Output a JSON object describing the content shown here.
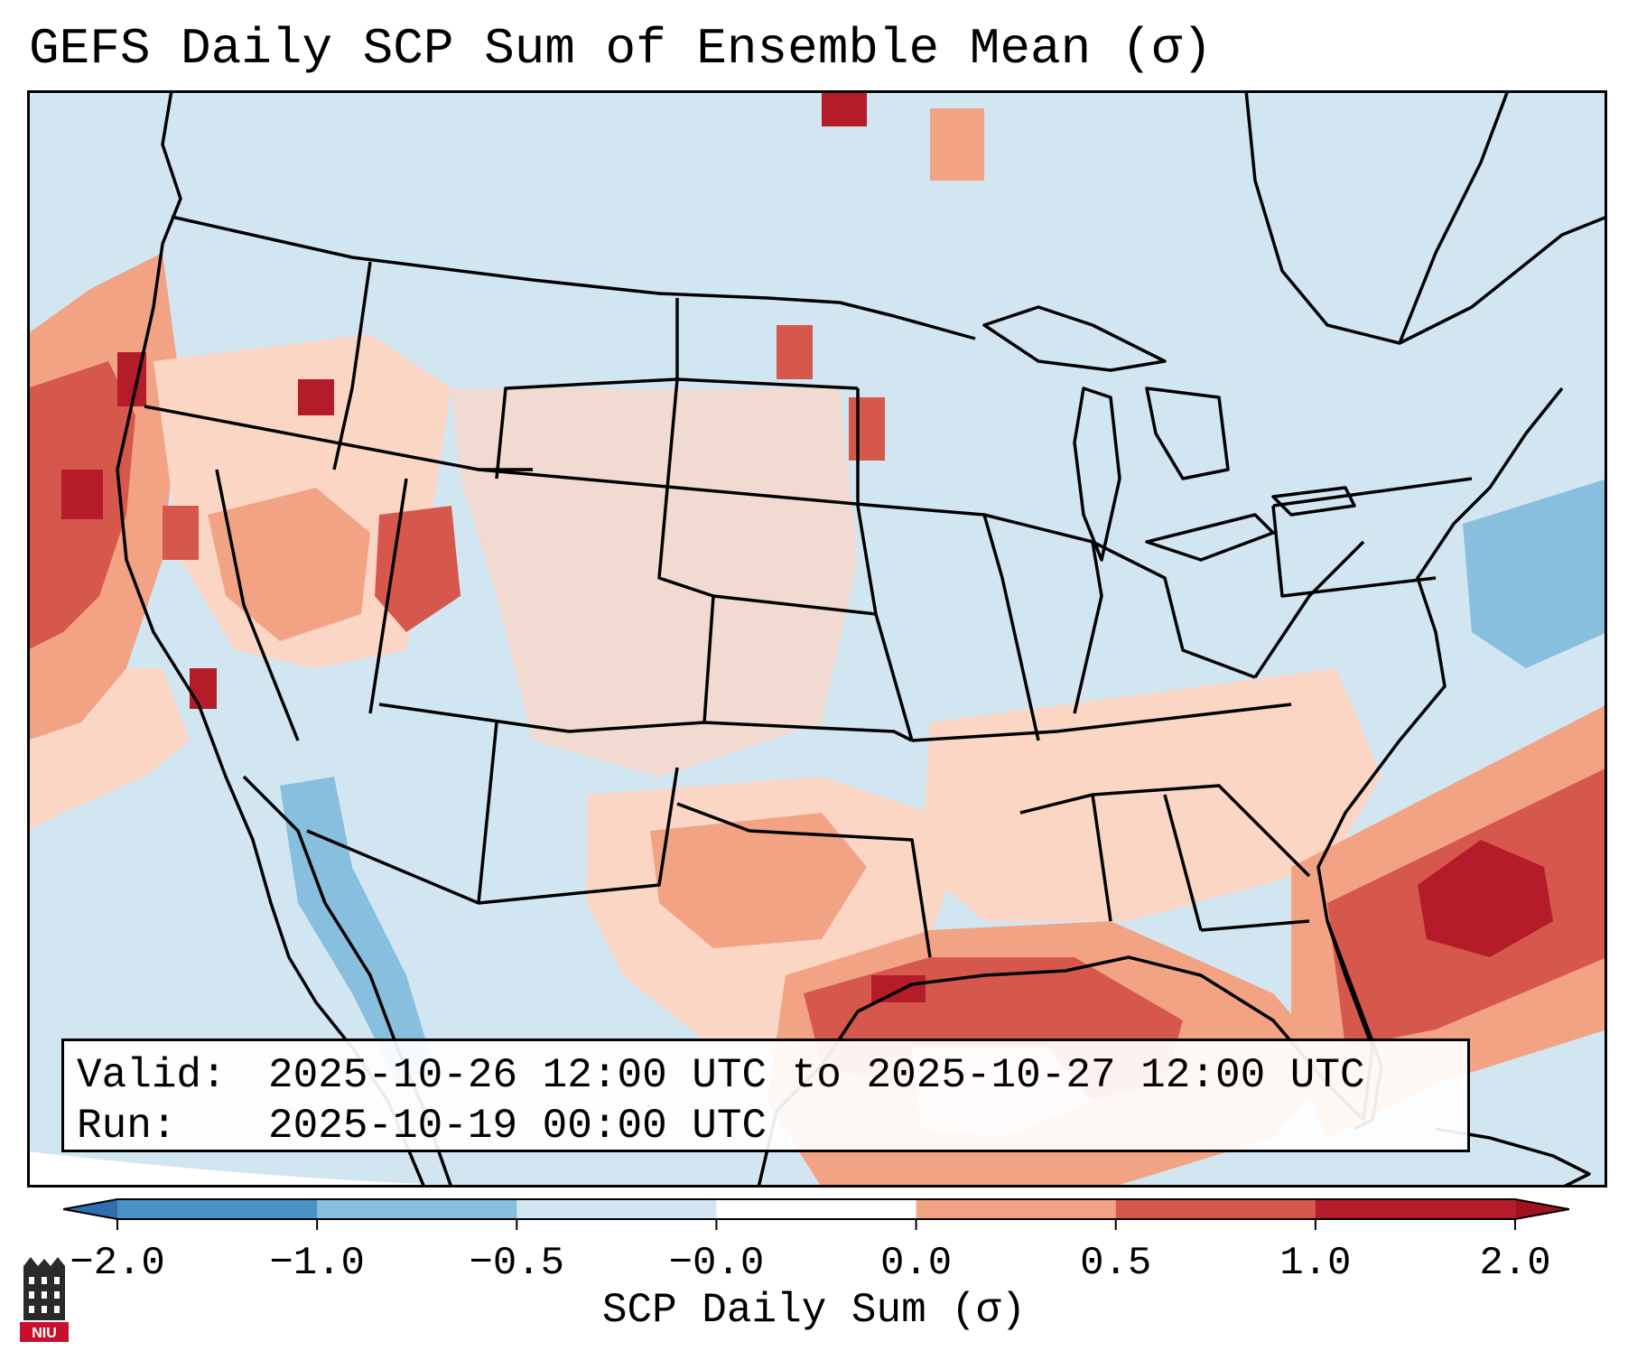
{
  "title": "GEFS Daily SCP Sum of Ensemble Mean (σ)",
  "info": {
    "valid_label": "Valid:",
    "valid_value": "2025-10-26 12:00 UTC to 2025-10-27 12:00 UTC",
    "run_label": "Run:",
    "run_value": "2025-10-19 00:00 UTC"
  },
  "colorbar": {
    "label": "SCP Daily Sum (σ)",
    "ticks": [
      "−2.0",
      "−1.0",
      "−0.5",
      "−0.0",
      "0.0",
      "0.5",
      "1.0",
      "2.0"
    ],
    "colors": [
      "#4a91c4",
      "#88bfde",
      "#d2e6f1",
      "#ffffff",
      "#fbd6c5",
      "#f2a384",
      "#d6584c",
      "#b51c2a"
    ]
  },
  "logo": {
    "text": "NIU"
  },
  "map_layers": {
    "ocean_background": "light-blue",
    "features": [
      "state-borders",
      "coastlines",
      "great-lakes",
      "country-borders"
    ],
    "highlights": [
      {
        "region": "Pacific Northwest coast",
        "level": "0.5 to 2.0"
      },
      {
        "region": "Northern California",
        "level": "1.0 to 2.0"
      },
      {
        "region": "Gulf of Mexico coast",
        "level": "1.0 to 2.0"
      },
      {
        "region": "Western Atlantic off Southeast coast",
        "level": "1.0 to 2.0"
      },
      {
        "region": "Central/Northern Plains",
        "level": "0.0 to 1.0"
      },
      {
        "region": "Western Atlantic off New England",
        "level": "-1.0 to -0.5"
      },
      {
        "region": "Gulf of California",
        "level": "-1.0 to -0.5"
      }
    ]
  }
}
